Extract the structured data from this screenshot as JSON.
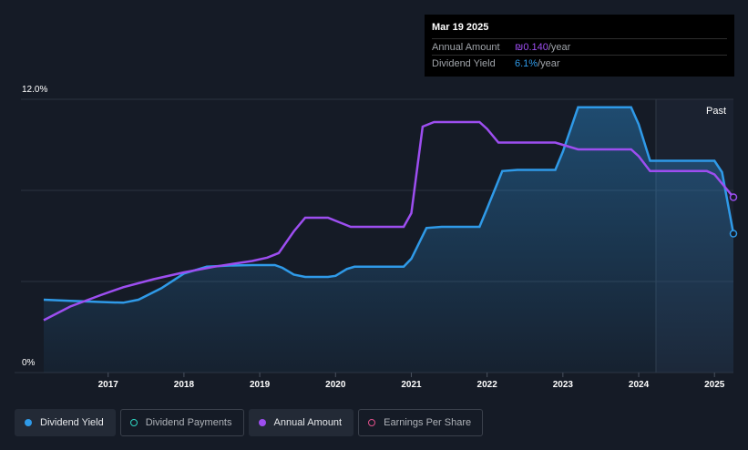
{
  "tooltip": {
    "date": "Mar 19 2025",
    "annual_amount_label": "Annual Amount",
    "annual_amount_value": "₪0.140",
    "annual_amount_unit": "/year",
    "dividend_yield_label": "Dividend Yield",
    "dividend_yield_value": "6.1%",
    "dividend_yield_unit": "/year"
  },
  "past_label": "Past",
  "legend": [
    {
      "label": "Dividend Yield",
      "color": "#2f9ae8",
      "filled": true,
      "active": true
    },
    {
      "label": "Dividend Payments",
      "color": "#2fd6c3",
      "filled": false,
      "active": false
    },
    {
      "label": "Annual Amount",
      "color": "#9d4ef0",
      "filled": true,
      "active": true
    },
    {
      "label": "Earnings Per Share",
      "color": "#e0508a",
      "filled": false,
      "active": false
    }
  ],
  "colors": {
    "background": "#151b26",
    "yield": "#2f9ae8",
    "amount": "#9d4ef0",
    "grid": "#2c3340",
    "axis_text": "#ffffff"
  },
  "chart_data": {
    "type": "line",
    "y_tick_labels": [
      "12.0%",
      "0%"
    ],
    "ylim": [
      0,
      12
    ],
    "xlim": [
      2016.15,
      2025.25
    ],
    "x_tick_labels": [
      "2017",
      "2018",
      "2019",
      "2020",
      "2021",
      "2022",
      "2023",
      "2024",
      "2025"
    ],
    "x_ticks": [
      2017,
      2018,
      2019,
      2020,
      2021,
      2022,
      2023,
      2024,
      2025
    ],
    "forecast_start": 2024.2,
    "series": [
      {
        "name": "Dividend Yield",
        "x": [
          2016.15,
          2016.5,
          2016.9,
          2017.2,
          2017.4,
          2017.7,
          2018.0,
          2018.3,
          2018.6,
          2018.9,
          2019.2,
          2019.3,
          2019.45,
          2019.6,
          2019.9,
          2020.0,
          2020.15,
          2020.25,
          2020.6,
          2020.9,
          2021.0,
          2021.2,
          2021.4,
          2021.7,
          2021.9,
          2022.0,
          2022.2,
          2022.4,
          2022.7,
          2022.9,
          2023.0,
          2023.2,
          2023.4,
          2023.7,
          2023.9,
          2024.0,
          2024.15,
          2024.6,
          2024.9,
          2025.0,
          2025.1,
          2025.25
        ],
        "y": [
          3.2,
          3.15,
          3.1,
          3.07,
          3.2,
          3.7,
          4.35,
          4.65,
          4.7,
          4.72,
          4.72,
          4.6,
          4.3,
          4.2,
          4.2,
          4.25,
          4.55,
          4.65,
          4.65,
          4.65,
          5.0,
          6.35,
          6.4,
          6.4,
          6.4,
          7.2,
          8.85,
          8.9,
          8.9,
          8.9,
          9.7,
          11.65,
          11.65,
          11.65,
          11.65,
          10.9,
          9.3,
          9.3,
          9.3,
          9.3,
          8.8,
          6.1
        ]
      },
      {
        "name": "Annual Amount",
        "x": [
          2016.15,
          2016.5,
          2016.9,
          2017.2,
          2017.6,
          2018.0,
          2018.4,
          2018.7,
          2018.9,
          2019.1,
          2019.25,
          2019.45,
          2019.6,
          2019.8,
          2019.9,
          2020.05,
          2020.2,
          2020.5,
          2020.9,
          2021.0,
          2021.15,
          2021.3,
          2021.6,
          2021.9,
          2022.0,
          2022.15,
          2022.4,
          2022.7,
          2022.9,
          2023.0,
          2023.2,
          2023.5,
          2023.9,
          2024.0,
          2024.15,
          2024.5,
          2024.9,
          2025.0,
          2025.25
        ],
        "y": [
          2.3,
          2.9,
          3.4,
          3.75,
          4.1,
          4.4,
          4.65,
          4.8,
          4.9,
          5.05,
          5.25,
          6.2,
          6.8,
          6.8,
          6.8,
          6.6,
          6.4,
          6.4,
          6.4,
          7.0,
          10.8,
          11.0,
          11.0,
          11.0,
          10.7,
          10.1,
          10.1,
          10.1,
          10.1,
          10.0,
          9.8,
          9.8,
          9.8,
          9.5,
          8.85,
          8.85,
          8.85,
          8.7,
          7.7
        ]
      }
    ]
  }
}
